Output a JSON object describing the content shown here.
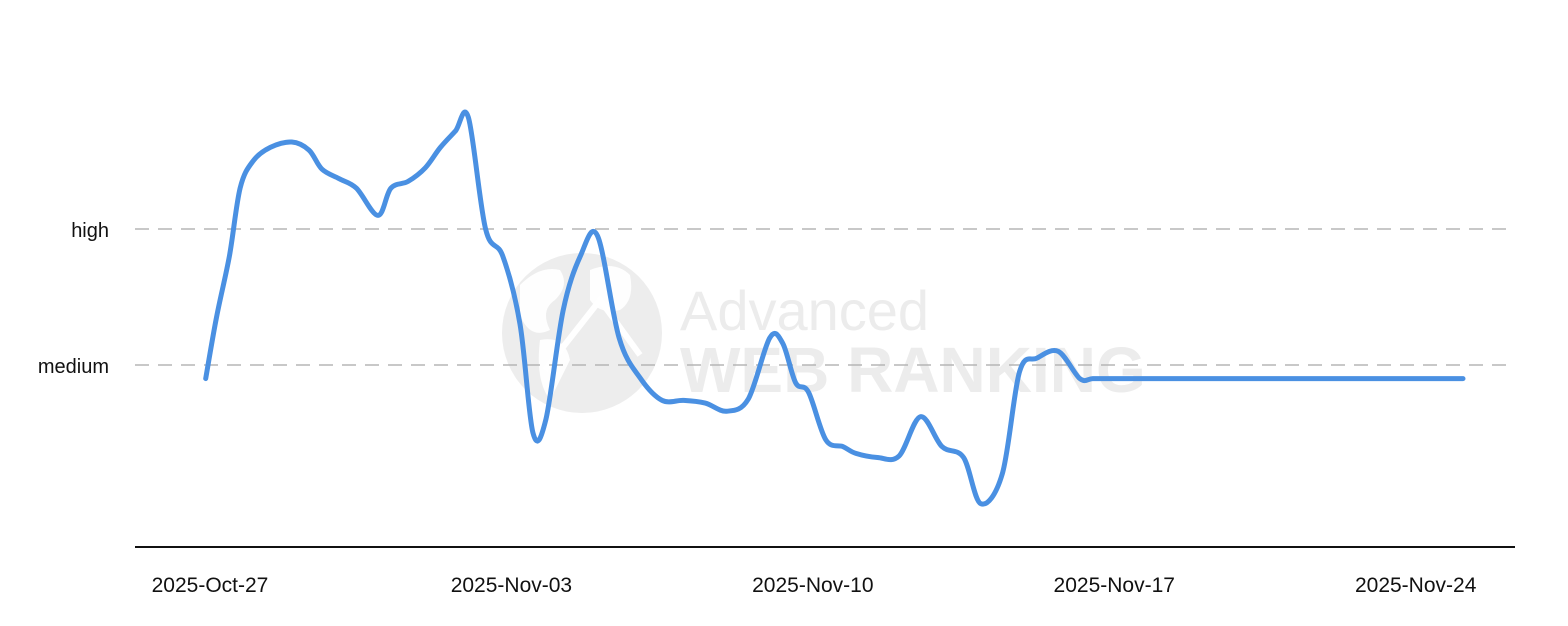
{
  "chart_data": {
    "type": "line",
    "y_levels": [
      "medium",
      "high"
    ],
    "x_ticks": [
      "2025-Oct-27",
      "2025-Nov-03",
      "2025-Nov-10",
      "2025-Nov-17",
      "2025-Nov-24"
    ],
    "x_start": "2025-Oct-27",
    "x_end": "2025-Nov-25",
    "ylim": [
      -1.3,
      2.0
    ],
    "grid": "horizontal-dashed",
    "watermark": [
      "Advanced",
      "WEB RANKING"
    ],
    "series": [
      {
        "color": "#4a90e2",
        "x": [
          -0.1,
          0.15,
          0.45,
          0.7,
          1.0,
          1.4,
          1.9,
          2.3,
          2.6,
          3.0,
          3.4,
          3.9,
          4.2,
          4.6,
          5.0,
          5.35,
          5.7,
          6.0,
          6.4,
          6.8,
          7.2,
          7.5,
          7.8,
          8.2,
          8.6,
          9.0,
          9.5,
          10.0,
          10.5,
          11.0,
          11.5,
          12.0,
          12.5,
          13.0,
          13.3,
          13.6,
          13.9,
          14.3,
          14.7,
          15.0,
          15.5,
          16.0,
          16.5,
          17.0,
          17.5,
          17.9,
          18.4,
          18.8,
          19.2,
          19.7,
          20.2,
          20.5,
          20.9,
          21.3,
          21.6,
          21.9,
          22.3,
          22.7,
          23.1,
          23.5,
          24.0,
          24.5,
          25.0,
          25.5,
          26.0,
          26.5,
          27.0,
          27.5,
          28.0,
          28.5,
          28.8,
          29.1
        ],
        "y": [
          -0.1,
          0.35,
          0.8,
          1.3,
          1.5,
          1.6,
          1.64,
          1.58,
          1.44,
          1.37,
          1.3,
          1.1,
          1.3,
          1.35,
          1.45,
          1.6,
          1.72,
          1.82,
          1.0,
          0.8,
          0.3,
          -0.5,
          -0.4,
          0.4,
          0.8,
          0.95,
          0.2,
          -0.1,
          -0.26,
          -0.26,
          -0.28,
          -0.34,
          -0.25,
          0.2,
          0.16,
          -0.13,
          -0.2,
          -0.55,
          -0.6,
          -0.65,
          -0.68,
          -0.67,
          -0.38,
          -0.6,
          -0.68,
          -1.02,
          -0.8,
          -0.05,
          0.05,
          0.1,
          -0.1,
          -0.1,
          -0.1,
          -0.1,
          -0.1,
          -0.1,
          -0.1,
          -0.1,
          -0.1,
          -0.1,
          -0.1,
          -0.1,
          -0.1,
          -0.1,
          -0.1,
          -0.1,
          -0.1,
          -0.1,
          -0.1,
          -0.1,
          -0.1,
          -0.1
        ]
      }
    ]
  }
}
